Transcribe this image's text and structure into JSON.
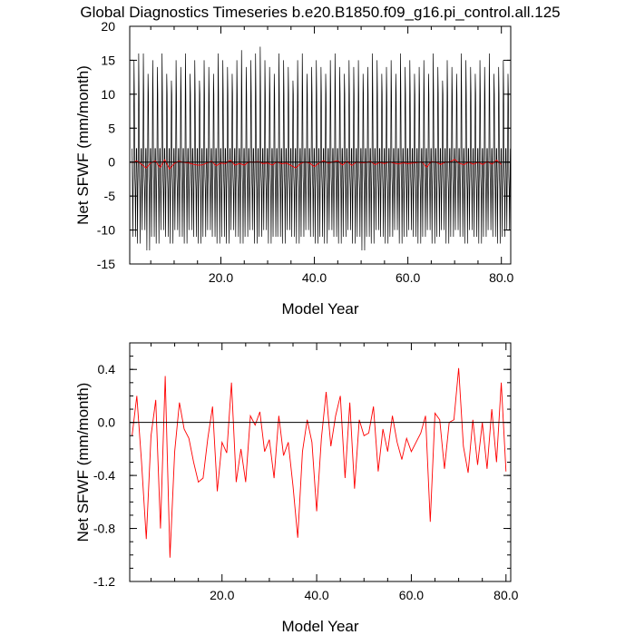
{
  "title": "Global Diagnostics Timeseries b.e20.B1850.f09_g16.pi_control.all.125",
  "colors": {
    "monthly_line": "#000000",
    "annual_line": "#ff0000",
    "zero_line": "#000000",
    "frame": "#000000"
  },
  "chart_data": [
    {
      "type": "line",
      "xlabel": "Model Year",
      "ylabel": "Net SFWF (mm/month)",
      "xlim": [
        0.5,
        82
      ],
      "ylim": [
        -15,
        20
      ],
      "x_ticks": [
        "20.0",
        "40.0",
        "60.0",
        "80.0"
      ],
      "x_tick_values": [
        20,
        40,
        60,
        80
      ],
      "y_ticks": [
        "20",
        "15",
        "10",
        "5",
        "0",
        "-5",
        "-10",
        "-15"
      ],
      "y_tick_values": [
        20,
        15,
        10,
        5,
        0,
        -5,
        -10,
        -15
      ],
      "reference_line": 0,
      "series": [
        {
          "color": "#000000",
          "x_start": 1,
          "x_step": 0.0833,
          "annual_cycle": [
            2,
            -3.5,
            -11,
            -3,
            1,
            14,
            10,
            -2,
            -4,
            -10.5,
            -3,
            2
          ],
          "peaks": [
            15,
            16,
            16,
            13,
            15,
            14,
            16,
            13,
            12,
            15,
            14,
            16,
            13,
            15,
            12,
            15,
            14,
            13,
            16,
            15,
            14,
            13,
            15,
            16.5,
            14,
            15,
            16,
            17,
            15,
            14,
            13,
            16,
            15,
            14,
            12,
            15,
            16,
            13,
            14,
            15,
            14,
            13,
            15,
            16,
            14,
            13,
            15,
            14,
            15,
            13,
            14,
            16,
            15,
            13,
            14,
            15,
            13,
            16,
            14,
            15,
            13,
            14,
            15,
            13,
            16,
            14,
            12,
            15,
            14,
            13,
            16,
            15,
            14,
            13,
            15,
            14,
            16,
            13,
            14,
            15,
            13
          ],
          "troughs": [
            -11,
            -12,
            -10,
            -13,
            -11,
            -12,
            -10,
            -11,
            -12,
            -10,
            -11,
            -12,
            -10,
            -11,
            -12,
            -11,
            -10,
            -11,
            -12,
            -11,
            -12,
            -10,
            -11,
            -12,
            -11,
            -10,
            -12,
            -11,
            -10,
            -12,
            -11,
            -11,
            -12,
            -10,
            -11,
            -12,
            -11,
            -10,
            -11,
            -12,
            -11,
            -12,
            -10,
            -11,
            -12,
            -11,
            -10,
            -12,
            -11,
            -13,
            -11,
            -12,
            -10,
            -11,
            -12,
            -11,
            -10,
            -12,
            -11,
            -10,
            -11,
            -12,
            -11,
            -10,
            -12,
            -11,
            -10,
            -12,
            -11,
            -10,
            -11,
            -12,
            -10,
            -11,
            -12,
            -11,
            -10,
            -11,
            -12,
            -11,
            -10
          ]
        },
        {
          "color": "#ff0000",
          "x_start": 1,
          "x_step": 1,
          "values": [
            -0.1,
            0.2,
            -0.3,
            -0.88,
            -0.1,
            0.17,
            -0.8,
            0.35,
            -1.02,
            -0.22,
            0.15,
            -0.05,
            -0.12,
            -0.3,
            -0.45,
            -0.42,
            -0.12,
            0.12,
            -0.52,
            -0.15,
            -0.23,
            0.3,
            -0.45,
            -0.2,
            -0.45,
            0.05,
            -0.02,
            0.08,
            -0.22,
            -0.13,
            -0.42,
            0.05,
            -0.25,
            -0.15,
            -0.48,
            -0.87,
            -0.22,
            0.02,
            -0.15,
            -0.67,
            -0.12,
            0.23,
            -0.18,
            0.05,
            0.2,
            -0.42,
            0.15,
            -0.5,
            0.02,
            -0.1,
            -0.08,
            0.12,
            -0.37,
            -0.05,
            -0.22,
            0.05,
            -0.15,
            -0.28,
            -0.12,
            -0.22,
            -0.15,
            -0.08,
            0.05,
            -0.75,
            0.07,
            0.02,
            -0.35,
            0.0,
            0.02,
            0.41,
            -0.18,
            -0.38,
            0.02,
            -0.32,
            0.0,
            -0.35,
            0.1,
            -0.3,
            0.3,
            -0.37
          ]
        }
      ]
    },
    {
      "type": "line",
      "xlabel": "Model Year",
      "ylabel": "Net SFWF (mm/month)",
      "xlim": [
        0.5,
        81
      ],
      "ylim": [
        -1.2,
        0.6
      ],
      "x_ticks": [
        "20.0",
        "40.0",
        "60.0",
        "80.0"
      ],
      "x_tick_values": [
        20,
        40,
        60,
        80
      ],
      "y_ticks": [
        "0.4",
        "0.0",
        "-0.4",
        "-0.8",
        "-1.2"
      ],
      "y_tick_values": [
        0.4,
        0.0,
        -0.4,
        -0.8,
        -1.2
      ],
      "reference_line": 0,
      "series": [
        {
          "color": "#ff0000",
          "x_start": 1,
          "x_step": 1,
          "values": [
            -0.1,
            0.2,
            -0.3,
            -0.88,
            -0.1,
            0.17,
            -0.8,
            0.35,
            -1.02,
            -0.22,
            0.15,
            -0.05,
            -0.12,
            -0.3,
            -0.45,
            -0.42,
            -0.12,
            0.12,
            -0.52,
            -0.15,
            -0.23,
            0.3,
            -0.45,
            -0.2,
            -0.45,
            0.05,
            -0.02,
            0.08,
            -0.22,
            -0.13,
            -0.42,
            0.05,
            -0.25,
            -0.15,
            -0.48,
            -0.87,
            -0.22,
            0.02,
            -0.15,
            -0.67,
            -0.12,
            0.23,
            -0.18,
            0.05,
            0.2,
            -0.42,
            0.15,
            -0.5,
            0.02,
            -0.1,
            -0.08,
            0.12,
            -0.37,
            -0.05,
            -0.22,
            0.05,
            -0.15,
            -0.28,
            -0.12,
            -0.22,
            -0.15,
            -0.08,
            0.05,
            -0.75,
            0.07,
            0.02,
            -0.35,
            0.0,
            0.02,
            0.41,
            -0.18,
            -0.38,
            0.02,
            -0.32,
            0.0,
            -0.35,
            0.1,
            -0.3,
            0.3,
            -0.37
          ]
        }
      ]
    }
  ]
}
